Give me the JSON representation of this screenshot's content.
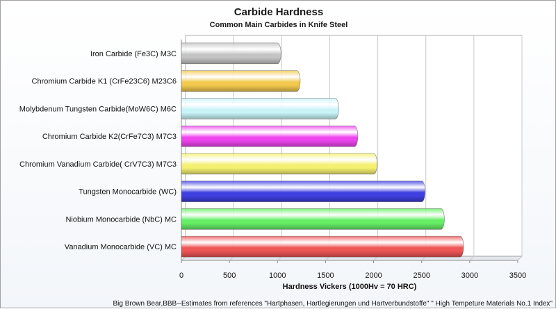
{
  "chart_data": {
    "type": "bar",
    "orientation": "horizontal",
    "title": "Carbide Hardness",
    "subtitle": "Common Main Carbides in Knife Steel",
    "xlabel": "Hardness Vickers (1000Hv = 70 HRC)",
    "ylabel": "",
    "xlim": [
      0,
      3500
    ],
    "xticks": [
      0,
      500,
      1000,
      1500,
      2000,
      2500,
      3000,
      3500
    ],
    "grid": true,
    "categories": [
      "Iron Carbide (Fe3C) M3C",
      "Chromium Carbide K1 (CrFe23C6) M23C6",
      "Molybdenum Tungsten Carbide(MoW6C) M6C",
      "Chromium Carbide K2(CrFe7C3) M7C3",
      "Chromium Vanadium Carbide( CrV7C3) M7C3",
      "Tungsten Monocarbide (WC)",
      "Niobium Monocarbide (NbC) MC",
      "Vanadium Monocarbide (VC) MC"
    ],
    "values": [
      1000,
      1200,
      1600,
      1800,
      2000,
      2500,
      2700,
      2900
    ],
    "colors": [
      "#c4c4c4",
      "#f2c94c",
      "#c8f4f8",
      "#ee44ee",
      "#f4f070",
      "#4040e0",
      "#66ee66",
      "#ee5555"
    ],
    "footnote": "Big Brown Bear,BBB--Estimates from references \"Hartphasen, Hartlegierungen und Hartverbundstoffe\" \" High Tempeture Materials No.1 Index\""
  }
}
